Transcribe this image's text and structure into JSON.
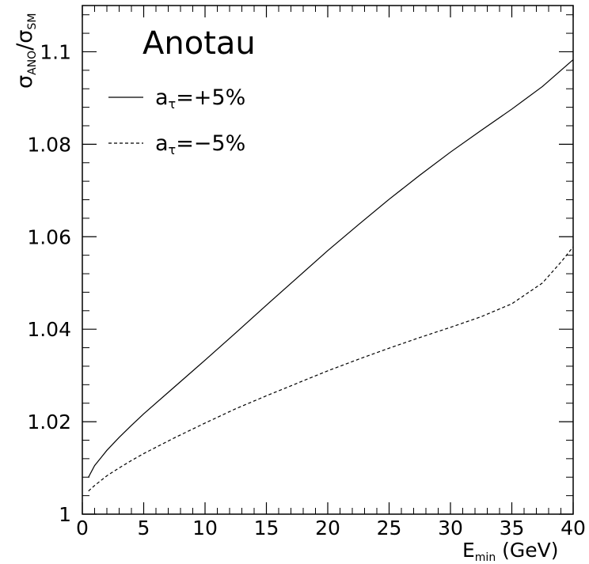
{
  "chart_data": {
    "type": "line",
    "title": "Anotau",
    "xlabel": {
      "base": "E",
      "sub": "min",
      "rest": " (GeV)"
    },
    "ylabel": {
      "s1": "σ",
      "sub1": "ANO",
      "slash": "/",
      "s2": "σ",
      "sub2": "SM"
    },
    "xlim": [
      0,
      40
    ],
    "ylim": [
      1.0,
      1.11
    ],
    "xticks": [
      0,
      5,
      10,
      15,
      20,
      25,
      30,
      35,
      40
    ],
    "xtick_labels": [
      "0",
      "5",
      "10",
      "15",
      "20",
      "25",
      "30",
      "35",
      "40"
    ],
    "yticks": [
      1.0,
      1.02,
      1.04,
      1.06,
      1.08,
      1.1
    ],
    "ytick_labels": [
      "1",
      "1.02",
      "1.04",
      "1.06",
      "1.08",
      "1.1"
    ],
    "grid": false,
    "legend_position": "top-left",
    "series": [
      {
        "name": "a_τ=+5%",
        "legend_main": "a",
        "legend_sub": "τ",
        "legend_rest": "=+5%",
        "style": "solid",
        "x": [
          0.5,
          1,
          2,
          3,
          4,
          5,
          7.5,
          10,
          12.5,
          15,
          17.5,
          20,
          22.5,
          25,
          27.5,
          30,
          32.5,
          35,
          37.5,
          40
        ],
        "y": [
          1.008,
          1.0105,
          1.0138,
          1.0166,
          1.0192,
          1.0217,
          1.0275,
          1.0333,
          1.0392,
          1.0452,
          1.0511,
          1.057,
          1.0626,
          1.0681,
          1.0733,
          1.0783,
          1.083,
          1.0876,
          1.0925,
          1.0983
        ]
      },
      {
        "name": "a_τ=−5%",
        "legend_main": "a",
        "legend_sub": "τ",
        "legend_rest": "=−5%",
        "style": "dashed",
        "x": [
          0.5,
          1,
          2,
          3,
          4,
          5,
          7.5,
          10,
          12.5,
          15,
          17.5,
          20,
          22.5,
          25,
          27.5,
          30,
          32.5,
          35,
          37.5,
          39,
          40
        ],
        "y": [
          1.005,
          1.0062,
          1.0083,
          1.01,
          1.0116,
          1.0131,
          1.0165,
          1.0197,
          1.0228,
          1.0256,
          1.0283,
          1.031,
          1.0335,
          1.0359,
          1.0382,
          1.0404,
          1.0427,
          1.0455,
          1.05,
          1.0545,
          1.0578
        ]
      }
    ]
  }
}
